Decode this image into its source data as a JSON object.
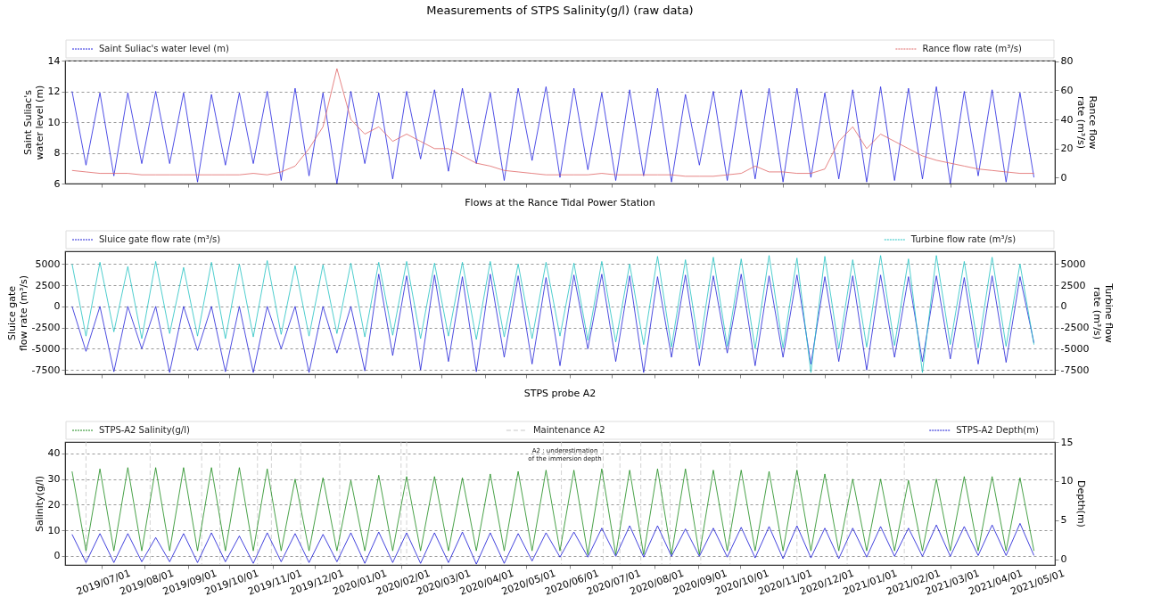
{
  "chart_data": [
    {
      "type": "line",
      "title": "Measurements of STPS Salinity(g/l) (raw data)",
      "ylabel": "Saint Suliac's water level (m)",
      "y2label": "Rance flow rate (m³/s)",
      "x": [
        "2019-06-10",
        "2019-06-20",
        "2019-06-30",
        "2019-07-10",
        "2019-07-20",
        "2019-07-30",
        "2019-08-09",
        "2019-08-19",
        "2019-08-29",
        "2019-09-08",
        "2019-09-18",
        "2019-09-28",
        "2019-10-08",
        "2019-10-18",
        "2019-10-28",
        "2019-11-07",
        "2019-11-17",
        "2019-11-27",
        "2019-12-07",
        "2019-12-17",
        "2019-12-27",
        "2020-01-06",
        "2020-01-16",
        "2020-01-26",
        "2020-02-05",
        "2020-02-15",
        "2020-02-25",
        "2020-03-06",
        "2020-03-16",
        "2020-03-26",
        "2020-04-05",
        "2020-04-15",
        "2020-04-25",
        "2020-05-05",
        "2020-05-15",
        "2020-05-25",
        "2020-06-04",
        "2020-06-14",
        "2020-06-24",
        "2020-07-04",
        "2020-07-14",
        "2020-07-24",
        "2020-08-03",
        "2020-08-13",
        "2020-08-23",
        "2020-09-02",
        "2020-09-12",
        "2020-09-22",
        "2020-10-02",
        "2020-10-12",
        "2020-10-22",
        "2020-11-01",
        "2020-11-11",
        "2020-11-21",
        "2020-12-01",
        "2020-12-11",
        "2020-12-21",
        "2020-12-31",
        "2021-01-10",
        "2021-01-20",
        "2021-01-30",
        "2021-02-09",
        "2021-02-19",
        "2021-03-01",
        "2021-03-11",
        "2021-03-21",
        "2021-03-31",
        "2021-04-10",
        "2021-04-20",
        "2021-04-30"
      ],
      "series": [
        {
          "name": "Saint Suliac's water level (m)",
          "color": "#2323e0",
          "values": [
            12.0,
            7.2,
            11.9,
            6.5,
            11.9,
            7.3,
            12.0,
            7.3,
            11.9,
            6.1,
            11.8,
            7.2,
            11.9,
            7.3,
            12.0,
            6.2,
            12.2,
            6.5,
            11.9,
            6.0,
            12.0,
            7.3,
            11.9,
            6.3,
            12.0,
            7.6,
            12.1,
            6.8,
            12.2,
            7.3,
            11.9,
            6.2,
            12.2,
            7.5,
            12.3,
            6.4,
            12.2,
            6.9,
            11.9,
            6.2,
            12.1,
            6.5,
            12.2,
            6.1,
            11.8,
            7.2,
            12.0,
            6.2,
            12.1,
            6.3,
            12.2,
            6.1,
            12.2,
            6.4,
            11.9,
            6.3,
            12.1,
            6.1,
            12.3,
            6.2,
            12.2,
            6.3,
            12.3,
            6.0,
            12.0,
            6.5,
            12.1,
            6.1,
            11.9,
            6.4
          ]
        },
        {
          "name": "Rance flow rate (m³/s)",
          "color": "#e06666",
          "axis": "y2",
          "values": [
            5,
            4,
            3,
            3,
            3,
            2,
            2,
            2,
            2,
            2,
            2,
            2,
            2,
            3,
            2,
            4,
            8,
            20,
            35,
            75,
            40,
            30,
            35,
            25,
            30,
            25,
            20,
            20,
            15,
            10,
            8,
            5,
            4,
            3,
            2,
            2,
            2,
            2,
            3,
            2,
            2,
            2,
            2,
            2,
            1,
            1,
            1,
            2,
            3,
            8,
            4,
            4,
            3,
            3,
            6,
            25,
            35,
            20,
            30,
            25,
            20,
            15,
            12,
            10,
            8,
            6,
            5,
            4,
            3,
            3
          ]
        }
      ],
      "xlim": [
        "2019-06-05",
        "2021-05-15"
      ],
      "xticks": [
        {
          "value": "2019-07-01",
          "label": null
        },
        {
          "value": "2019-08-01",
          "label": null
        },
        {
          "value": "2019-09-01",
          "label": null
        },
        {
          "value": "2019-10-01",
          "label": null
        },
        {
          "value": "2019-11-01",
          "label": null
        },
        {
          "value": "2019-12-01",
          "label": null
        },
        {
          "value": "2020-01-01",
          "label": null
        },
        {
          "value": "2020-02-01",
          "label": null
        },
        {
          "value": "2020-03-01",
          "label": null
        },
        {
          "value": "2020-04-01",
          "label": null
        },
        {
          "value": "2020-05-01",
          "label": null
        },
        {
          "value": "2020-06-01",
          "label": null
        },
        {
          "value": "2020-07-01",
          "label": null
        },
        {
          "value": "2020-08-01",
          "label": null
        },
        {
          "value": "2020-09-01",
          "label": null
        },
        {
          "value": "2020-10-01",
          "label": null
        },
        {
          "value": "2020-11-01",
          "label": null
        },
        {
          "value": "2020-12-01",
          "label": null
        },
        {
          "value": "2021-01-01",
          "label": null
        },
        {
          "value": "2021-02-01",
          "label": null
        },
        {
          "value": "2021-03-01",
          "label": null
        },
        {
          "value": "2021-04-01",
          "label": null
        },
        {
          "value": "2021-05-01",
          "label": null
        }
      ],
      "ylim": [
        6,
        14
      ],
      "yticks": [
        6,
        8,
        10,
        12,
        14
      ],
      "y2lim": [
        -4,
        80.5
      ],
      "y2ticks": [
        0,
        20,
        40,
        60,
        80
      ],
      "grid": "y",
      "legend": "top",
      "tick_labels": "y"
    },
    {
      "type": "line",
      "title": "Flows at the Rance Tidal Power Station",
      "ylabel": "Sluice gate flow rate (m³/s)",
      "y2label": "Turbine flow rate (m³/s)",
      "x": [
        "2019-06-10",
        "2019-06-20",
        "2019-06-30",
        "2019-07-10",
        "2019-07-20",
        "2019-07-30",
        "2019-08-09",
        "2019-08-19",
        "2019-08-29",
        "2019-09-08",
        "2019-09-18",
        "2019-09-28",
        "2019-10-08",
        "2019-10-18",
        "2019-10-28",
        "2019-11-07",
        "2019-11-17",
        "2019-11-27",
        "2019-12-07",
        "2019-12-17",
        "2019-12-27",
        "2020-01-06",
        "2020-01-16",
        "2020-01-26",
        "2020-02-05",
        "2020-02-15",
        "2020-02-25",
        "2020-03-06",
        "2020-03-16",
        "2020-03-26",
        "2020-04-05",
        "2020-04-15",
        "2020-04-25",
        "2020-05-05",
        "2020-05-15",
        "2020-05-25",
        "2020-06-04",
        "2020-06-14",
        "2020-06-24",
        "2020-07-04",
        "2020-07-14",
        "2020-07-24",
        "2020-08-03",
        "2020-08-13",
        "2020-08-23",
        "2020-09-02",
        "2020-09-12",
        "2020-09-22",
        "2020-10-02",
        "2020-10-12",
        "2020-10-22",
        "2020-11-01",
        "2020-11-11",
        "2020-11-21",
        "2020-12-01",
        "2020-12-11",
        "2020-12-21",
        "2020-12-31",
        "2021-01-10",
        "2021-01-20",
        "2021-01-30",
        "2021-02-09",
        "2021-02-19",
        "2021-03-01",
        "2021-03-11",
        "2021-03-21",
        "2021-03-31",
        "2021-04-10",
        "2021-04-20",
        "2021-04-30"
      ],
      "series": [
        {
          "name": "Sluice gate flow rate (m³/s)",
          "color": "#2222d8",
          "values": [
            0,
            -5300,
            0,
            -7700,
            0,
            -5000,
            0,
            -7800,
            0,
            -5200,
            0,
            -7700,
            0,
            -7800,
            0,
            -5000,
            0,
            -7800,
            0,
            -5500,
            0,
            -7600,
            3800,
            -5800,
            3600,
            -7500,
            3700,
            -6500,
            3500,
            -7700,
            3800,
            -6000,
            3600,
            -6800,
            3400,
            -7000,
            3700,
            -5000,
            3800,
            -6500,
            3600,
            -7800,
            3500,
            -6000,
            3700,
            -7000,
            3600,
            -5500,
            3800,
            -7000,
            3600,
            -6000,
            3700,
            -6800,
            3500,
            -6500,
            3600,
            -7500,
            3700,
            -6000,
            3500,
            -6500,
            3600,
            -6200,
            3400,
            -6800,
            3600,
            -6600,
            3500,
            -4300
          ]
        },
        {
          "name": "Turbine flow rate (m³/s)",
          "color": "#22c2c2",
          "axis": "y2",
          "values": [
            5000,
            -3500,
            5200,
            -3000,
            4700,
            -3800,
            5300,
            -3200,
            4600,
            -3500,
            5200,
            -3800,
            5000,
            -3600,
            5400,
            -3300,
            4800,
            -3500,
            4900,
            -3200,
            5100,
            -3600,
            5200,
            -3400,
            5300,
            -3800,
            5100,
            -3500,
            5200,
            -3900,
            5300,
            -3600,
            5000,
            -3800,
            5200,
            -3500,
            5100,
            -4000,
            5300,
            -4200,
            5000,
            -4500,
            5900,
            -4800,
            5500,
            -5000,
            5800,
            -4700,
            5600,
            -5000,
            6000,
            -4900,
            5700,
            -7800,
            5900,
            -5000,
            5500,
            -4800,
            6000,
            -4600,
            5600,
            -7800,
            6000,
            -4500,
            5300,
            -4900,
            5800,
            -4700,
            5000,
            -4500
          ]
        }
      ],
      "xlim": [
        "2019-06-05",
        "2021-05-15"
      ],
      "xticks": [
        {
          "value": "2019-07-01",
          "label": null
        },
        {
          "value": "2019-08-01",
          "label": null
        },
        {
          "value": "2019-09-01",
          "label": null
        },
        {
          "value": "2019-10-01",
          "label": null
        },
        {
          "value": "2019-11-01",
          "label": null
        },
        {
          "value": "2019-12-01",
          "label": null
        },
        {
          "value": "2020-01-01",
          "label": null
        },
        {
          "value": "2020-02-01",
          "label": null
        },
        {
          "value": "2020-03-01",
          "label": null
        },
        {
          "value": "2020-04-01",
          "label": null
        },
        {
          "value": "2020-05-01",
          "label": null
        },
        {
          "value": "2020-06-01",
          "label": null
        },
        {
          "value": "2020-07-01",
          "label": null
        },
        {
          "value": "2020-08-01",
          "label": null
        },
        {
          "value": "2020-09-01",
          "label": null
        },
        {
          "value": "2020-10-01",
          "label": null
        },
        {
          "value": "2020-11-01",
          "label": null
        },
        {
          "value": "2020-12-01",
          "label": null
        },
        {
          "value": "2021-01-01",
          "label": null
        },
        {
          "value": "2021-02-01",
          "label": null
        },
        {
          "value": "2021-03-01",
          "label": null
        },
        {
          "value": "2021-04-01",
          "label": null
        },
        {
          "value": "2021-05-01",
          "label": null
        }
      ],
      "ylim": [
        -8000,
        6500
      ],
      "yticks": [
        -7500,
        -5000,
        -2500,
        0,
        2500,
        5000
      ],
      "y2lim": [
        -8000,
        6500
      ],
      "y2ticks": [
        -7500,
        -5000,
        -2500,
        0,
        2500,
        5000
      ],
      "grid": "y",
      "legend": "top",
      "tick_labels": "y"
    },
    {
      "type": "line",
      "title": "STPS probe A2",
      "ylabel": "Salinity(g/l)",
      "y2label": "Depth(m)",
      "x": [
        "2019-06-10",
        "2019-06-20",
        "2019-06-30",
        "2019-07-10",
        "2019-07-20",
        "2019-07-30",
        "2019-08-09",
        "2019-08-19",
        "2019-08-29",
        "2019-09-08",
        "2019-09-18",
        "2019-09-28",
        "2019-10-08",
        "2019-10-18",
        "2019-10-28",
        "2019-11-07",
        "2019-11-17",
        "2019-11-27",
        "2019-12-07",
        "2019-12-17",
        "2019-12-27",
        "2020-01-06",
        "2020-01-16",
        "2020-01-26",
        "2020-02-05",
        "2020-02-15",
        "2020-02-25",
        "2020-03-06",
        "2020-03-16",
        "2020-03-26",
        "2020-04-05",
        "2020-04-15",
        "2020-04-25",
        "2020-05-05",
        "2020-05-15",
        "2020-05-25",
        "2020-06-04",
        "2020-06-14",
        "2020-06-24",
        "2020-07-04",
        "2020-07-14",
        "2020-07-24",
        "2020-08-03",
        "2020-08-13",
        "2020-08-23",
        "2020-09-02",
        "2020-09-12",
        "2020-09-22",
        "2020-10-02",
        "2020-10-12",
        "2020-10-22",
        "2020-11-01",
        "2020-11-11",
        "2020-11-21",
        "2020-12-01",
        "2020-12-11",
        "2020-12-21",
        "2020-12-31",
        "2021-01-10",
        "2021-01-20",
        "2021-01-30",
        "2021-02-09",
        "2021-02-19",
        "2021-03-01",
        "2021-03-11",
        "2021-03-21",
        "2021-03-31",
        "2021-04-10",
        "2021-04-20",
        "2021-04-30"
      ],
      "series": [
        {
          "name": "STPS-A2 Salinity(g/l)",
          "color": "#1a8a1a",
          "values": [
            33,
            2,
            34,
            2,
            34.5,
            2,
            34.5,
            2,
            34.5,
            2,
            34.5,
            2,
            34.5,
            2,
            34,
            2,
            30,
            2,
            30.5,
            2,
            29.5,
            2,
            31.5,
            2,
            31,
            2,
            31,
            2,
            30.5,
            2,
            32,
            2,
            33,
            2,
            33.5,
            2,
            33.5,
            0.5,
            34,
            0.5,
            33.5,
            0.5,
            34,
            0.5,
            34,
            0.5,
            33.5,
            2,
            33.5,
            2,
            33,
            2,
            33.5,
            2,
            32,
            2,
            30,
            2,
            30,
            2,
            29.5,
            2,
            30,
            2,
            31,
            2,
            31,
            2,
            30.5,
            2
          ]
        },
        {
          "name": "STPS-A2 Depth(m)",
          "color": "#1414d4",
          "axis": "y2",
          "values": [
            3.2,
            -0.4,
            3.3,
            -0.4,
            3.3,
            -0.3,
            2.8,
            -0.3,
            3.3,
            -0.4,
            3.4,
            -0.3,
            3.0,
            -0.5,
            3.4,
            -0.3,
            3.3,
            -0.4,
            3.2,
            -0.3,
            3.4,
            -0.5,
            3.5,
            -0.4,
            3.4,
            -0.5,
            3.4,
            -0.4,
            3.5,
            -0.6,
            3.4,
            -0.5,
            3.3,
            -0.2,
            3.4,
            0.3,
            3.5,
            0.3,
            4.0,
            0.4,
            4.3,
            0.3,
            4.3,
            0.4,
            3.9,
            0.4,
            4.0,
            0.3,
            4.1,
            0.2,
            4.2,
            0.1,
            4.3,
            0.2,
            4.0,
            0.1,
            4.0,
            0.3,
            4.2,
            0.4,
            4.0,
            0.4,
            4.4,
            0.4,
            4.2,
            0.5,
            4.4,
            0.5,
            4.6,
            0.5
          ]
        }
      ],
      "ref_lines": [
        {
          "axis": "x",
          "value": "2019-06-20",
          "label": "Maintenance A2",
          "color": "#c8c8c8",
          "line_style": "dashed"
        },
        {
          "axis": "x",
          "value": "2019-08-05",
          "color": "#c8c8c8",
          "line_style": "dashed"
        },
        {
          "axis": "x",
          "value": "2019-09-11",
          "color": "#c8c8c8",
          "line_style": "dashed"
        },
        {
          "axis": "x",
          "value": "2019-09-24",
          "color": "#c8c8c8",
          "line_style": "dashed"
        },
        {
          "axis": "x",
          "value": "2019-10-21",
          "color": "#c8c8c8",
          "line_style": "dashed"
        },
        {
          "axis": "x",
          "value": "2019-10-31",
          "color": "#c8c8c8",
          "line_style": "dashed"
        },
        {
          "axis": "x",
          "value": "2019-11-21",
          "color": "#c8c8c8",
          "line_style": "dashed"
        },
        {
          "axis": "x",
          "value": "2019-12-19",
          "color": "#c8c8c8",
          "line_style": "dashed"
        },
        {
          "axis": "x",
          "value": "2020-02-01",
          "color": "#c8c8c8",
          "line_style": "dashed"
        },
        {
          "axis": "x",
          "value": "2020-02-05",
          "color": "#c8c8c8",
          "line_style": "dashed"
        },
        {
          "axis": "x",
          "value": "2020-05-26",
          "color": "#c8c8c8",
          "line_style": "dashed"
        },
        {
          "axis": "x",
          "value": "2020-06-25",
          "color": "#c8c8c8",
          "line_style": "dashed"
        },
        {
          "axis": "x",
          "value": "2020-07-07",
          "color": "#c8c8c8",
          "line_style": "dashed"
        },
        {
          "axis": "x",
          "value": "2020-07-22",
          "color": "#c8c8c8",
          "line_style": "dashed"
        },
        {
          "axis": "x",
          "value": "2020-08-06",
          "color": "#c8c8c8",
          "line_style": "dashed"
        },
        {
          "axis": "x",
          "value": "2020-08-12",
          "color": "#c8c8c8",
          "line_style": "dashed"
        },
        {
          "axis": "x",
          "value": "2020-09-03",
          "color": "#c8c8c8",
          "line_style": "dashed"
        },
        {
          "axis": "x",
          "value": "2020-09-24",
          "color": "#c8c8c8",
          "line_style": "dashed"
        },
        {
          "axis": "x",
          "value": "2020-11-11",
          "color": "#c8c8c8",
          "line_style": "dashed"
        },
        {
          "axis": "x",
          "value": "2020-12-17",
          "color": "#c8c8c8",
          "line_style": "dashed"
        },
        {
          "axis": "x",
          "value": "2021-01-27",
          "color": "#c8c8c8",
          "line_style": "dashed"
        }
      ],
      "annotations": [
        "A2 : underestimation\nof the immersion depth"
      ],
      "xlim": [
        "2019-06-05",
        "2021-05-15"
      ],
      "xticks": [
        {
          "value": "2019-07-01",
          "label": "2019/07/01"
        },
        {
          "value": "2019-08-01",
          "label": "2019/08/01"
        },
        {
          "value": "2019-09-01",
          "label": "2019/09/01"
        },
        {
          "value": "2019-10-01",
          "label": "2019/10/01"
        },
        {
          "value": "2019-11-01",
          "label": "2019/11/01"
        },
        {
          "value": "2019-12-01",
          "label": "2019/12/01"
        },
        {
          "value": "2020-01-01",
          "label": "2020/01/01"
        },
        {
          "value": "2020-02-01",
          "label": "2020/02/01"
        },
        {
          "value": "2020-03-01",
          "label": "2020/03/01"
        },
        {
          "value": "2020-04-01",
          "label": "2020/04/01"
        },
        {
          "value": "2020-05-01",
          "label": "2020/05/01"
        },
        {
          "value": "2020-06-01",
          "label": "2020/06/01"
        },
        {
          "value": "2020-07-01",
          "label": "2020/07/01"
        },
        {
          "value": "2020-08-01",
          "label": "2020/08/01"
        },
        {
          "value": "2020-09-01",
          "label": "2020/09/01"
        },
        {
          "value": "2020-10-01",
          "label": "2020/10/01"
        },
        {
          "value": "2020-11-01",
          "label": "2020/11/01"
        },
        {
          "value": "2020-12-01",
          "label": "2020/12/01"
        },
        {
          "value": "2021-01-01",
          "label": "2021/01/01"
        },
        {
          "value": "2021-02-01",
          "label": "2021/02/01"
        },
        {
          "value": "2021-03-01",
          "label": "2021/03/01"
        },
        {
          "value": "2021-04-01",
          "label": "2021/04/01"
        },
        {
          "value": "2021-05-01",
          "label": "2021/05/01"
        }
      ],
      "ylim": [
        -3.5,
        44.5
      ],
      "yticks": [
        0,
        10,
        20,
        30,
        40
      ],
      "y2lim": [
        -0.7,
        15
      ],
      "y2ticks": [
        0,
        5,
        10,
        15
      ],
      "grid": "y",
      "legend": "top"
    }
  ]
}
